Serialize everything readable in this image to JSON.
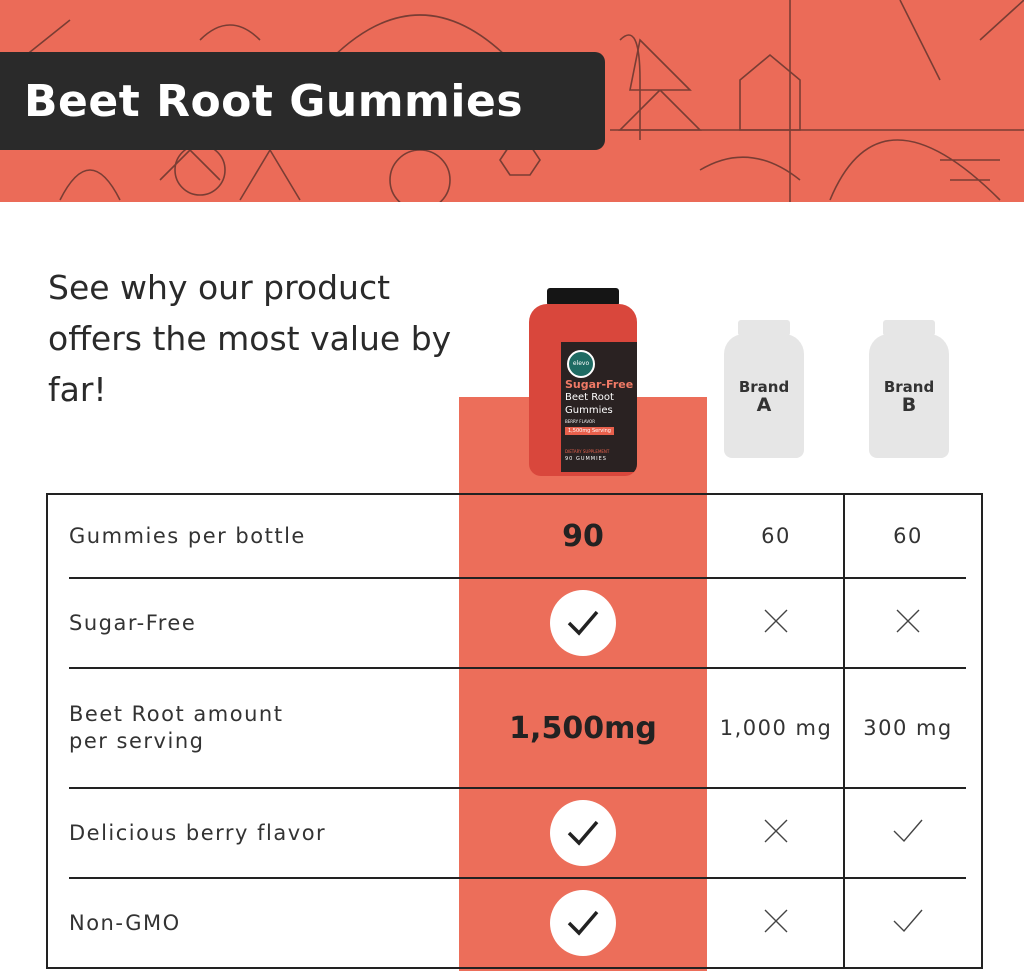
{
  "banner": {
    "title": "Beet Root Gummies",
    "background_color": "#EB6B58"
  },
  "headline": "See why our product offers the most value by far!",
  "product": {
    "brand_logo": "elevo",
    "label_line1": "Sugar-Free",
    "label_line2": "Beet Root",
    "label_line3": "Gummies",
    "label_flavor": "BERRY FLAVOR",
    "label_serving": "1,500mg Serving",
    "label_supplement": "DIETARY SUPPLEMENT",
    "label_count": "90 GUMMIES"
  },
  "competitors": [
    {
      "line1": "Brand",
      "line2": "A"
    },
    {
      "line1": "Brand",
      "line2": "B"
    }
  ],
  "rows": [
    {
      "label": "Gummies per bottle",
      "ours": "90",
      "a": "60",
      "b": "60"
    },
    {
      "label": "Sugar-Free",
      "ours": "check",
      "a": "cross",
      "b": "cross"
    },
    {
      "label": "Beet Root amount per serving",
      "ours": "1,500mg",
      "a": "1,000 mg",
      "b": "300 mg"
    },
    {
      "label": "Delicious berry flavor",
      "ours": "check",
      "a": "cross",
      "b": "check"
    },
    {
      "label": "Non-GMO",
      "ours": "check",
      "a": "cross",
      "b": "check"
    }
  ],
  "accent_color": "#EC6E5A"
}
